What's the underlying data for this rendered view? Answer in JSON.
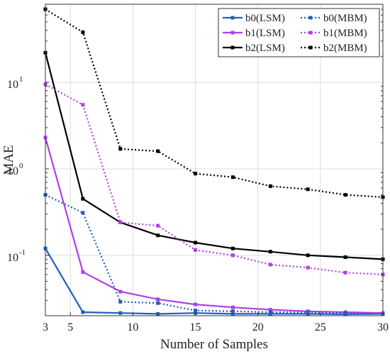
{
  "chart_data": {
    "type": "line",
    "xlabel": "Number of Samples",
    "ylabel": "MAE",
    "xscale": "linear",
    "yscale": "log",
    "xlim": [
      3,
      30
    ],
    "ylim": [
      0.02,
      80
    ],
    "grid": true,
    "legend_placement": "top-right",
    "x_ticks": [
      3,
      5,
      10,
      15,
      20,
      25,
      30
    ],
    "x_tick_labels": [
      "3",
      "5",
      "10",
      "15",
      "20",
      "25",
      "30"
    ],
    "y_ticks": [
      0.1,
      1,
      10
    ],
    "y_tick_bases": [
      "10",
      "10",
      "10"
    ],
    "y_tick_exponents": [
      "-1",
      "0",
      "1"
    ],
    "x": [
      3,
      6,
      9,
      12,
      15,
      18,
      21,
      24,
      27,
      30
    ],
    "series": [
      {
        "name": "b0(LSM)",
        "color": "#1f5fbf",
        "dash": "solid",
        "marker": "square",
        "values": [
          0.12,
          0.022,
          0.0215,
          0.021,
          0.0215,
          0.021,
          0.021,
          0.021,
          0.0208,
          0.021
        ]
      },
      {
        "name": "b1(LSM)",
        "color": "#b040e8",
        "dash": "solid",
        "marker": "square",
        "values": [
          2.3,
          0.064,
          0.038,
          0.031,
          0.027,
          0.025,
          0.0235,
          0.0225,
          0.022,
          0.0215
        ]
      },
      {
        "name": "b2(LSM)",
        "color": "#000000",
        "dash": "solid",
        "marker": "square",
        "values": [
          22,
          0.45,
          0.24,
          0.17,
          0.14,
          0.12,
          0.11,
          0.1,
          0.095,
          0.09
        ]
      },
      {
        "name": "b0(MBM)",
        "color": "#1f5fbf",
        "dash": "dotted",
        "marker": "square",
        "values": [
          0.5,
          0.31,
          0.029,
          0.028,
          0.023,
          0.0225,
          0.022,
          0.0218,
          0.0215,
          0.021
        ]
      },
      {
        "name": "b1(MBM)",
        "color": "#b040e8",
        "dash": "dotted",
        "marker": "square",
        "values": [
          9.5,
          5.5,
          0.24,
          0.22,
          0.115,
          0.1,
          0.078,
          0.072,
          0.063,
          0.06
        ]
      },
      {
        "name": "b2(MBM)",
        "color": "#000000",
        "dash": "dotted",
        "marker": "square",
        "values": [
          70,
          38,
          1.7,
          1.6,
          0.88,
          0.8,
          0.63,
          0.58,
          0.5,
          0.47
        ]
      }
    ],
    "legend_order": [
      "b0(LSM)",
      "b0(MBM)",
      "b1(LSM)",
      "b1(MBM)",
      "b2(LSM)",
      "b2(MBM)"
    ]
  }
}
